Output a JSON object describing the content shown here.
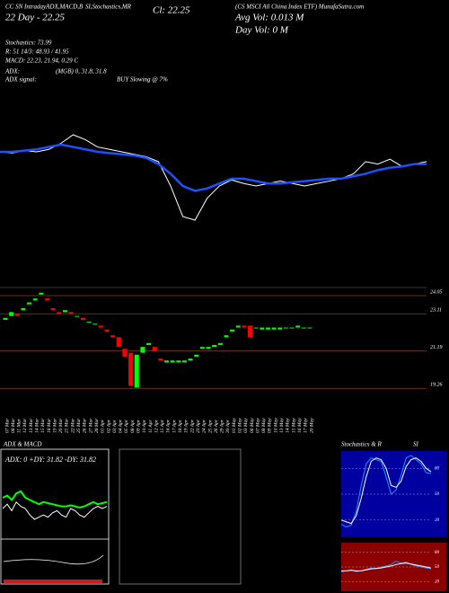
{
  "header": {
    "menu": "CC SN IntradayADX,MACD,B",
    "menu2": "SI,Stochastics,MR",
    "close_label": "Cl: 22.25",
    "name": "(CS MSCI All China Index ETF) MunafaSutra.com",
    "day_range": "22 Day - 22.25",
    "avg_vol": "Avg Vol: 0.013 M",
    "day_vol": "Day Vol: 0  M",
    "stochastics": "Stochastics: 73.99",
    "si": "R: 51 14/3: 48.93 / 41.95",
    "macd": "MACD: 22.23, 21.94, 0.29 C",
    "adx": "ADX:",
    "adx_values": "(MGB) 0, 31.8, 31.8",
    "adx_signal": "ADX  signal:",
    "signal": "BUY Slowing @ 7%"
  },
  "chart_data": [
    {
      "type": "line",
      "series": [
        {
          "color": "#ffffff",
          "values": [
            48,
            47,
            49,
            48,
            50,
            55,
            62,
            58,
            52,
            50,
            48,
            46,
            44,
            40,
            20,
            -5,
            -8,
            10,
            20,
            25,
            22,
            20,
            22,
            24,
            22,
            20,
            22,
            24,
            26,
            30,
            40,
            38,
            42,
            36,
            38,
            40
          ]
        },
        {
          "color": "#1e50ff",
          "values": [
            48,
            48,
            49,
            50,
            52,
            54,
            52,
            50,
            48,
            47,
            46,
            45,
            43,
            38,
            30,
            20,
            16,
            18,
            22,
            26,
            26,
            24,
            22,
            22,
            23,
            24,
            25,
            26,
            26,
            28,
            30,
            33,
            35,
            36,
            38,
            38
          ]
        }
      ]
    },
    {
      "type": "candlestick",
      "categories": [
        "07 Mar",
        "08 Mar",
        "11 Mar",
        "12 Mar",
        "13 Mar",
        "14 Mar",
        "15 Mar",
        "18 Mar",
        "19 Mar",
        "20 Mar",
        "21 Mar",
        "22 Mar",
        "25 Mar",
        "26 Mar",
        "27 Mar",
        "28 Mar",
        "01 Apr",
        "02 Apr",
        "03 Apr",
        "04 Apr",
        "05 Apr",
        "08 Apr",
        "09 Apr",
        "10 Apr",
        "11 Apr",
        "12 Apr",
        "15 Apr",
        "16 Apr",
        "17 Apr",
        "18 Apr",
        "19 Apr",
        "22 Apr",
        "23 Apr",
        "24 Apr",
        "25 Apr",
        "26 Apr",
        "29 Apr",
        "30 Apr",
        "01 May",
        "02 May",
        "03 May",
        "06 May",
        "07 May",
        "08 May",
        "09 May",
        "10 May",
        "13 May",
        "14 May",
        "15 May",
        "16 May",
        "17 May",
        "20 May"
      ],
      "open": [
        22.8,
        23.0,
        23.1,
        23.3,
        23.6,
        23.8,
        24.1,
        23.9,
        23.4,
        23.2,
        23.2,
        23.2,
        23.0,
        22.9,
        22.7,
        22.6,
        22.5,
        22.3,
        22.0,
        21.9,
        21.3,
        21.1,
        19.3,
        21.1,
        21.5,
        21.4,
        20.8,
        20.6,
        20.6,
        20.6,
        20.6,
        20.7,
        20.9,
        21.3,
        21.3,
        21.4,
        21.5,
        21.9,
        22.2,
        22.4,
        22.5,
        22.5,
        22.4,
        22.3,
        22.3,
        22.3,
        22.3,
        22.4,
        22.4,
        22.4,
        22.4,
        22.4
      ],
      "close": [
        22.9,
        23.2,
        23.0,
        23.4,
        23.7,
        23.9,
        24.2,
        23.8,
        23.3,
        23.1,
        23.3,
        23.1,
        23.0,
        22.8,
        22.7,
        22.6,
        22.4,
        22.2,
        21.9,
        21.4,
        20.9,
        19.4,
        21.0,
        21.4,
        21.6,
        21.2,
        20.7,
        20.7,
        20.7,
        20.7,
        20.7,
        20.8,
        21.0,
        21.4,
        21.4,
        21.5,
        21.6,
        22.0,
        22.3,
        22.5,
        22.4,
        21.9,
        22.4,
        22.4,
        22.4,
        22.4,
        22.4,
        22.4,
        22.4,
        22.5,
        22.4,
        22.4
      ],
      "up_color": "#00ff00",
      "down_color": "#ff0000",
      "ylim": [
        18.9,
        24.7
      ],
      "yticks": [
        24.05,
        23.11,
        21.19,
        19.26
      ]
    },
    {
      "type": "line",
      "title": "ADX  & MACD",
      "annotation": "ADX: 0  +DY: 31.82  -DY: 31.82",
      "ylim": [
        0,
        60
      ],
      "series": [
        {
          "color": "#00ff00",
          "values": [
            30,
            32,
            28,
            34,
            36,
            30,
            28,
            26,
            24,
            26,
            25,
            24,
            23,
            22,
            22,
            23,
            22,
            21,
            22,
            24,
            26,
            24,
            25,
            26
          ]
        },
        {
          "color": "#ffffff",
          "values": [
            20,
            24,
            18,
            26,
            22,
            20,
            14,
            10,
            12,
            14,
            12,
            16,
            18,
            14,
            12,
            20,
            18,
            14,
            12,
            16,
            20,
            22,
            20,
            22
          ]
        }
      ]
    },
    {
      "type": "line",
      "title": "Stochastics & R",
      "bg": "#0000a0",
      "ylim": [
        0,
        100
      ],
      "yticks": [
        20,
        50,
        80
      ],
      "series": [
        {
          "color": "#1e90ff",
          "values": [
            15,
            12,
            14,
            30,
            60,
            85,
            92,
            90,
            88,
            70,
            50,
            55,
            72,
            92,
            95,
            90,
            85,
            75,
            74
          ]
        },
        {
          "color": "#ffffff",
          "values": [
            20,
            18,
            16,
            25,
            45,
            70,
            88,
            92,
            90,
            80,
            60,
            58,
            65,
            82,
            90,
            92,
            88,
            80,
            76
          ]
        }
      ]
    },
    {
      "type": "line",
      "title": "SI",
      "bg": "#8b0000",
      "ylim": [
        0,
        100
      ],
      "yticks": [
        20,
        50,
        80
      ],
      "series": [
        {
          "color": "#1e90ff",
          "values": [
            40,
            42,
            44,
            40,
            42,
            45,
            48,
            46,
            50,
            52,
            55,
            62,
            58,
            60,
            55,
            52,
            50,
            48,
            46
          ]
        },
        {
          "color": "#ffffff",
          "values": [
            42,
            42,
            43,
            42,
            42,
            44,
            46,
            47,
            48,
            50,
            52,
            55,
            57,
            58,
            56,
            54,
            52,
            50,
            48
          ]
        }
      ]
    }
  ]
}
